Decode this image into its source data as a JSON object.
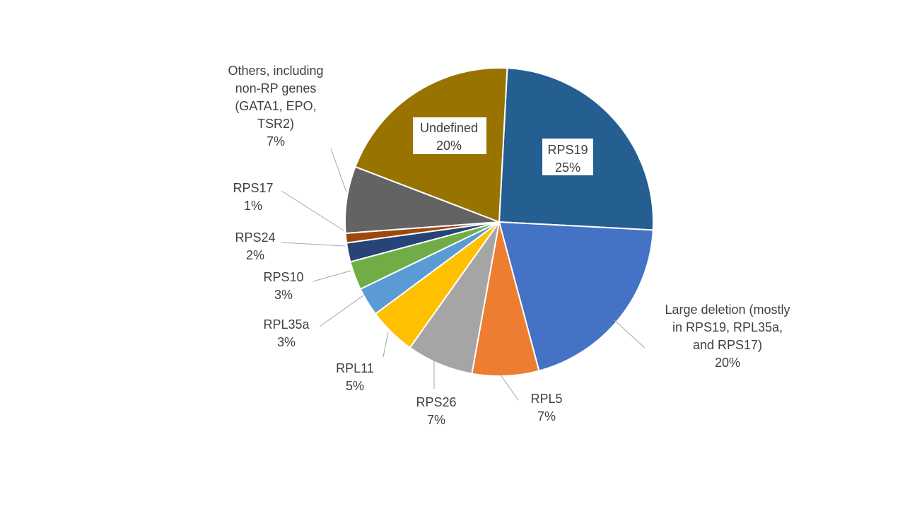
{
  "chart_data": {
    "type": "pie",
    "title": "",
    "start_angle_deg": 3,
    "slices": [
      {
        "label": [
          "RPS19"
        ],
        "value": 25,
        "value_label": "25%",
        "color": "#255E91"
      },
      {
        "label": [
          "Large deletion (mostly",
          "in RPS19, RPL35a,",
          "and RPS17)"
        ],
        "value": 20,
        "value_label": "20%",
        "color": "#4472C4"
      },
      {
        "label": [
          "RPL5"
        ],
        "value": 7,
        "value_label": "7%",
        "color": "#ED7D31"
      },
      {
        "label": [
          "RPS26"
        ],
        "value": 7,
        "value_label": "7%",
        "color": "#A5A5A5"
      },
      {
        "label": [
          "RPL11"
        ],
        "value": 5,
        "value_label": "5%",
        "color": "#FFC000"
      },
      {
        "label": [
          "RPL35a"
        ],
        "value": 3,
        "value_label": "3%",
        "color": "#5B9BD5"
      },
      {
        "label": [
          "RPS10"
        ],
        "value": 3,
        "value_label": "3%",
        "color": "#70AD47"
      },
      {
        "label": [
          "RPS24"
        ],
        "value": 2,
        "value_label": "2%",
        "color": "#264478"
      },
      {
        "label": [
          "RPS17"
        ],
        "value": 1,
        "value_label": "1%",
        "color": "#9E480E"
      },
      {
        "label": [
          "Others, including",
          "non-RP genes",
          "(GATA1,  EPO,",
          "TSR2)"
        ],
        "value": 7,
        "value_label": "7%",
        "color": "#636363"
      },
      {
        "label": [
          "Undefined"
        ],
        "value": 20,
        "value_label": "20%",
        "color": "#997300"
      }
    ]
  }
}
